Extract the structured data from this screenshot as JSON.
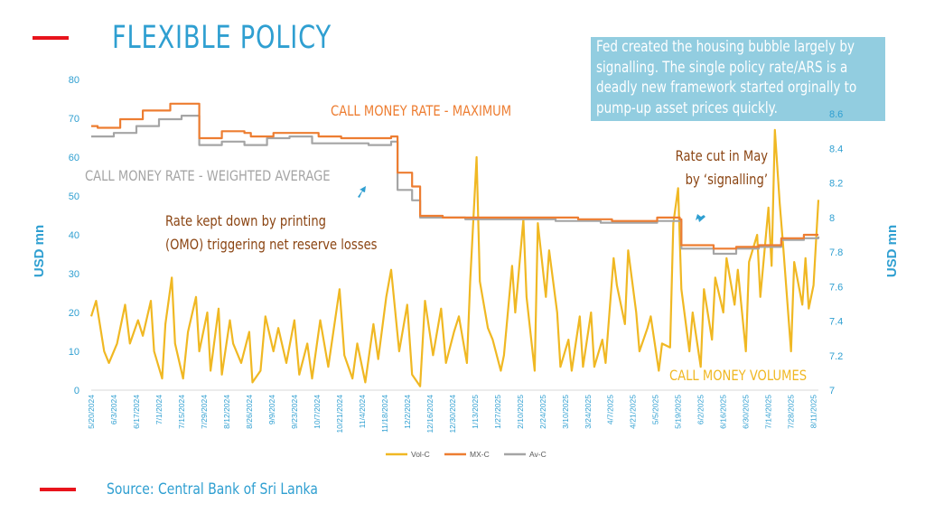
{
  "header": {
    "title": "FLEXIBLE POLICY"
  },
  "note": {
    "lines": [
      "Fed created the housing bubble largely by",
      "signalling. The single policy rate/ARS is a",
      "deadly new framework started orginally to",
      "pump-up asset prices quickly."
    ]
  },
  "footer": {
    "source": "Source: Central Bank of Sri Lanka"
  },
  "colors": {
    "vol": "#f0b823",
    "mx": "#ed7d31",
    "av": "#a5a5a5",
    "accent": "#2f9fd1",
    "annotation": "#8b4513",
    "red": "#e8141c",
    "note_bg": "#92cde0"
  },
  "chart_data": {
    "type": "line",
    "x_start": "2024-05-20",
    "x_end": "2025-08-14",
    "x_ticks": [
      "5/20/2024",
      "6/3/2024",
      "6/17/2024",
      "7/1/2024",
      "7/15/2024",
      "7/29/2024",
      "8/12/2024",
      "8/26/2024",
      "9/9/2024",
      "9/23/2024",
      "10/7/2024",
      "10/21/2024",
      "11/4/2024",
      "11/18/2024",
      "12/2/2024",
      "12/16/2024",
      "12/30/2024",
      "1/13/2025",
      "1/27/2025",
      "2/10/2025",
      "2/24/2025",
      "3/10/2025",
      "3/24/2025",
      "4/7/2025",
      "4/21/2025",
      "5/5/2025",
      "5/19/2025",
      "6/2/2025",
      "6/16/2025",
      "6/30/2025",
      "7/14/2025",
      "7/28/2025",
      "8/11/2025"
    ],
    "left_axis": {
      "label": "USD mn",
      "min": 0,
      "max": 80,
      "ticks": [
        "0",
        "10",
        "20",
        "30",
        "40",
        "50",
        "60",
        "70",
        "80"
      ]
    },
    "right_axis": {
      "label": "USD mn",
      "min": 7,
      "max": 8.8,
      "ticks": [
        "7",
        "7.2",
        "7.4",
        "7.6",
        "7.8",
        "8",
        "8.2",
        "8.4",
        "8.6"
      ]
    },
    "legend": {
      "position": "bottom",
      "entries": [
        "Vol-C",
        "MX-C",
        "Av-C"
      ]
    },
    "series": [
      {
        "name": "Vol-C",
        "axis": "left",
        "color": "#f0b823",
        "points": [
          [
            "2024-05-20",
            19
          ],
          [
            "2024-05-23",
            23
          ],
          [
            "2024-05-28",
            10
          ],
          [
            "2024-05-31",
            7
          ],
          [
            "2024-06-05",
            12
          ],
          [
            "2024-06-10",
            22
          ],
          [
            "2024-06-13",
            12
          ],
          [
            "2024-06-18",
            18
          ],
          [
            "2024-06-21",
            14
          ],
          [
            "2024-06-26",
            23
          ],
          [
            "2024-06-28",
            10
          ],
          [
            "2024-07-03",
            3
          ],
          [
            "2024-07-05",
            17
          ],
          [
            "2024-07-09",
            29
          ],
          [
            "2024-07-11",
            12
          ],
          [
            "2024-07-16",
            3
          ],
          [
            "2024-07-19",
            15
          ],
          [
            "2024-07-24",
            24
          ],
          [
            "2024-07-26",
            10
          ],
          [
            "2024-07-31",
            20
          ],
          [
            "2024-08-02",
            5
          ],
          [
            "2024-08-07",
            21
          ],
          [
            "2024-08-09",
            4
          ],
          [
            "2024-08-14",
            18
          ],
          [
            "2024-08-16",
            12
          ],
          [
            "2024-08-21",
            7
          ],
          [
            "2024-08-26",
            15
          ],
          [
            "2024-08-28",
            2
          ],
          [
            "2024-09-02",
            5
          ],
          [
            "2024-09-05",
            19
          ],
          [
            "2024-09-10",
            10
          ],
          [
            "2024-09-13",
            16
          ],
          [
            "2024-09-18",
            7
          ],
          [
            "2024-09-23",
            18
          ],
          [
            "2024-09-26",
            4
          ],
          [
            "2024-10-01",
            12
          ],
          [
            "2024-10-04",
            3
          ],
          [
            "2024-10-09",
            18
          ],
          [
            "2024-10-14",
            6
          ],
          [
            "2024-10-21",
            26
          ],
          [
            "2024-10-24",
            9
          ],
          [
            "2024-10-29",
            3
          ],
          [
            "2024-11-01",
            12
          ],
          [
            "2024-11-06",
            2
          ],
          [
            "2024-11-11",
            17
          ],
          [
            "2024-11-14",
            8
          ],
          [
            "2024-11-19",
            24
          ],
          [
            "2024-11-22",
            31
          ],
          [
            "2024-11-27",
            10
          ],
          [
            "2024-12-02",
            22
          ],
          [
            "2024-12-05",
            4
          ],
          [
            "2024-12-10",
            1
          ],
          [
            "2024-12-13",
            23
          ],
          [
            "2024-12-18",
            9
          ],
          [
            "2024-12-23",
            21
          ],
          [
            "2024-12-26",
            7
          ],
          [
            "2024-12-31",
            15
          ],
          [
            "2025-01-03",
            19
          ],
          [
            "2025-01-08",
            7
          ],
          [
            "2025-01-10",
            28
          ],
          [
            "2025-01-14",
            60
          ],
          [
            "2025-01-16",
            28
          ],
          [
            "2025-01-21",
            16
          ],
          [
            "2025-01-24",
            13
          ],
          [
            "2025-01-29",
            5
          ],
          [
            "2025-01-31",
            9
          ],
          [
            "2025-02-05",
            32
          ],
          [
            "2025-02-07",
            20
          ],
          [
            "2025-02-12",
            44
          ],
          [
            "2025-02-14",
            24
          ],
          [
            "2025-02-19",
            5
          ],
          [
            "2025-02-21",
            43
          ],
          [
            "2025-02-26",
            24
          ],
          [
            "2025-02-28",
            36
          ],
          [
            "2025-03-05",
            20
          ],
          [
            "2025-03-07",
            6
          ],
          [
            "2025-03-12",
            13
          ],
          [
            "2025-03-14",
            5
          ],
          [
            "2025-03-19",
            19
          ],
          [
            "2025-03-21",
            6
          ],
          [
            "2025-03-26",
            20
          ],
          [
            "2025-03-28",
            6
          ],
          [
            "2025-04-02",
            13
          ],
          [
            "2025-04-04",
            7
          ],
          [
            "2025-04-09",
            34
          ],
          [
            "2025-04-11",
            27
          ],
          [
            "2025-04-16",
            17
          ],
          [
            "2025-04-18",
            36
          ],
          [
            "2025-04-23",
            20
          ],
          [
            "2025-04-25",
            10
          ],
          [
            "2025-04-30",
            16
          ],
          [
            "2025-05-02",
            19
          ],
          [
            "2025-05-07",
            5
          ],
          [
            "2025-05-09",
            12
          ],
          [
            "2025-05-14",
            11
          ],
          [
            "2025-05-16",
            43
          ],
          [
            "2025-05-19",
            52
          ],
          [
            "2025-05-21",
            26
          ],
          [
            "2025-05-26",
            10
          ],
          [
            "2025-05-28",
            20
          ],
          [
            "2025-06-02",
            6
          ],
          [
            "2025-06-04",
            26
          ],
          [
            "2025-06-09",
            13
          ],
          [
            "2025-06-11",
            29
          ],
          [
            "2025-06-16",
            20
          ],
          [
            "2025-06-18",
            34
          ],
          [
            "2025-06-23",
            22
          ],
          [
            "2025-06-25",
            31
          ],
          [
            "2025-06-30",
            10
          ],
          [
            "2025-07-02",
            33
          ],
          [
            "2025-07-07",
            40
          ],
          [
            "2025-07-09",
            24
          ],
          [
            "2025-07-14",
            47
          ],
          [
            "2025-07-16",
            32
          ],
          [
            "2025-07-18",
            67
          ],
          [
            "2025-07-21",
            48
          ],
          [
            "2025-07-23",
            38
          ],
          [
            "2025-07-28",
            10
          ],
          [
            "2025-07-30",
            33
          ],
          [
            "2025-08-04",
            22
          ],
          [
            "2025-08-06",
            34
          ],
          [
            "2025-08-08",
            21
          ],
          [
            "2025-08-11",
            27
          ],
          [
            "2025-08-14",
            49
          ]
        ]
      },
      {
        "name": "MX-C",
        "axis": "right",
        "color": "#ed7d31",
        "points": [
          [
            "2024-05-20",
            8.53
          ],
          [
            "2024-05-24",
            8.52
          ],
          [
            "2024-06-07",
            8.57
          ],
          [
            "2024-06-21",
            8.62
          ],
          [
            "2024-07-08",
            8.66
          ],
          [
            "2024-07-22",
            8.66
          ],
          [
            "2024-07-26",
            8.46
          ],
          [
            "2024-08-09",
            8.5
          ],
          [
            "2024-08-23",
            8.49
          ],
          [
            "2024-08-27",
            8.47
          ],
          [
            "2024-09-10",
            8.49
          ],
          [
            "2024-09-24",
            8.49
          ],
          [
            "2024-10-08",
            8.47
          ],
          [
            "2024-10-22",
            8.46
          ],
          [
            "2024-11-08",
            8.46
          ],
          [
            "2024-11-22",
            8.47
          ],
          [
            "2024-11-26",
            8.26
          ],
          [
            "2024-12-05",
            8.18
          ],
          [
            "2024-12-10",
            8.01
          ],
          [
            "2024-12-24",
            8.0
          ],
          [
            "2025-01-14",
            8.0
          ],
          [
            "2025-02-04",
            8.0
          ],
          [
            "2025-03-04",
            8.0
          ],
          [
            "2025-03-18",
            7.99
          ],
          [
            "2025-04-08",
            7.98
          ],
          [
            "2025-05-06",
            8.0
          ],
          [
            "2025-05-20",
            7.99
          ],
          [
            "2025-05-21",
            7.84
          ],
          [
            "2025-06-10",
            7.82
          ],
          [
            "2025-06-24",
            7.83
          ],
          [
            "2025-07-08",
            7.84
          ],
          [
            "2025-07-22",
            7.88
          ],
          [
            "2025-08-05",
            7.9
          ],
          [
            "2025-08-14",
            7.9
          ]
        ]
      },
      {
        "name": "Av-C",
        "axis": "right",
        "color": "#a5a5a5",
        "points": [
          [
            "2024-05-20",
            8.47
          ],
          [
            "2024-06-03",
            8.49
          ],
          [
            "2024-06-17",
            8.53
          ],
          [
            "2024-07-01",
            8.57
          ],
          [
            "2024-07-15",
            8.59
          ],
          [
            "2024-07-26",
            8.42
          ],
          [
            "2024-08-09",
            8.44
          ],
          [
            "2024-08-23",
            8.42
          ],
          [
            "2024-09-06",
            8.46
          ],
          [
            "2024-09-20",
            8.47
          ],
          [
            "2024-10-04",
            8.43
          ],
          [
            "2024-10-18",
            8.43
          ],
          [
            "2024-11-08",
            8.42
          ],
          [
            "2024-11-22",
            8.44
          ],
          [
            "2024-11-26",
            8.16
          ],
          [
            "2024-12-05",
            8.1
          ],
          [
            "2024-12-10",
            8.0
          ],
          [
            "2025-01-07",
            7.99
          ],
          [
            "2025-02-04",
            7.99
          ],
          [
            "2025-03-04",
            7.98
          ],
          [
            "2025-04-01",
            7.97
          ],
          [
            "2025-05-06",
            7.98
          ],
          [
            "2025-05-20",
            7.98
          ],
          [
            "2025-05-21",
            7.82
          ],
          [
            "2025-06-10",
            7.79
          ],
          [
            "2025-06-24",
            7.82
          ],
          [
            "2025-07-08",
            7.83
          ],
          [
            "2025-07-22",
            7.87
          ],
          [
            "2025-08-05",
            7.88
          ],
          [
            "2025-08-14",
            7.89
          ]
        ]
      }
    ],
    "annotations": [
      {
        "text": "CALL MONEY RATE - MAXIMUM",
        "color": "#ed7d31"
      },
      {
        "text": "CALL MONEY RATE - WEIGHTED AVERAGE",
        "color": "#a5a5a5"
      },
      {
        "text": "Rate kept down by printing",
        "color": "#8b4513"
      },
      {
        "text": "(OMO) triggering net reserve losses",
        "color": "#8b4513"
      },
      {
        "text": "Rate cut in May",
        "color": "#8b4513"
      },
      {
        "text": "by ‘signalling’",
        "color": "#8b4513"
      },
      {
        "text": "CALL MONEY VOLUMES",
        "color": "#f0b823"
      }
    ]
  }
}
